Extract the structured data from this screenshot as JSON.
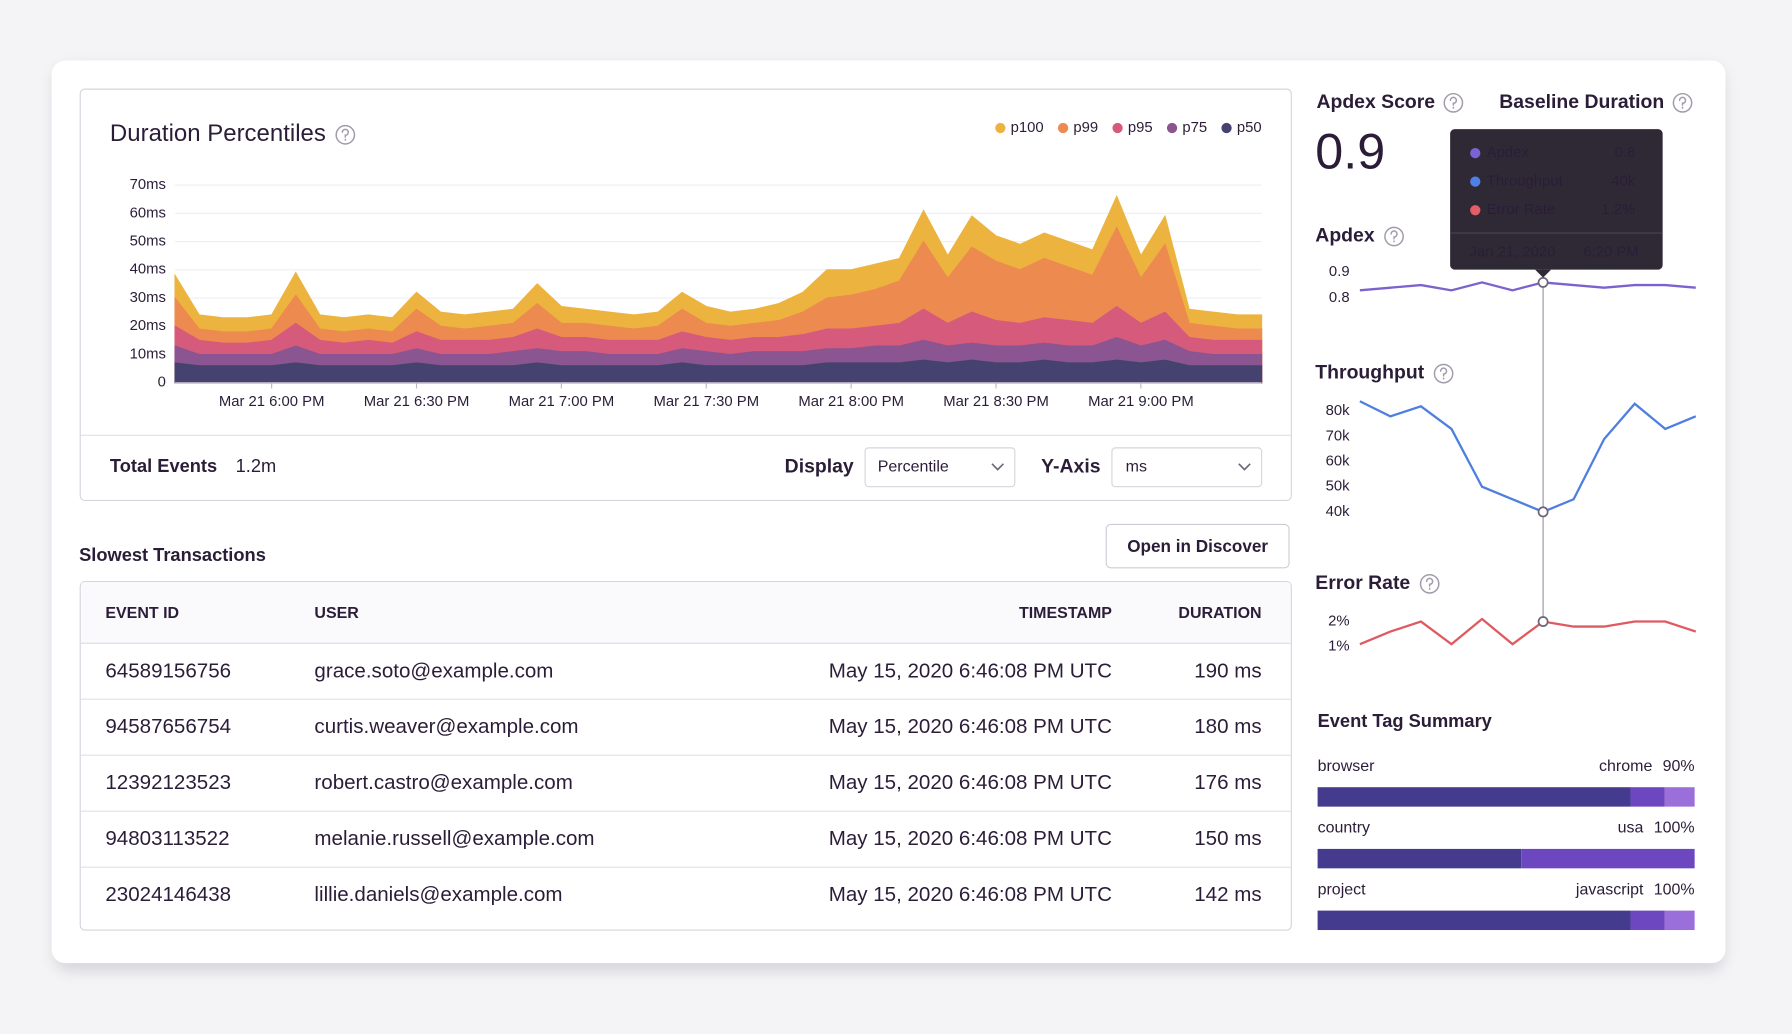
{
  "duration_chart": {
    "type": "area",
    "title": "Duration Percentiles",
    "legend": "top-right",
    "grid": true,
    "categories": [
      null,
      null,
      null,
      null,
      "Mar 21 6:00 PM",
      null,
      null,
      null,
      null,
      null,
      "Mar 21 6:30 PM",
      null,
      null,
      null,
      null,
      null,
      "Mar 21 7:00 PM",
      null,
      null,
      null,
      null,
      null,
      "Mar 21 7:30 PM",
      null,
      null,
      null,
      null,
      null,
      "Mar 21 8:00 PM",
      null,
      null,
      null,
      null,
      null,
      "Mar 21 8:30 PM",
      null,
      null,
      null,
      null,
      null,
      "Mar 21 9:00 PM",
      null,
      null,
      null,
      null,
      null
    ],
    "ylim": [
      0,
      70
    ],
    "yticks": [
      0,
      {
        "value": 10,
        "label": "10ms"
      },
      {
        "value": 20,
        "label": "20ms"
      },
      {
        "value": 30,
        "label": "30ms"
      },
      {
        "value": 40,
        "label": "40ms"
      },
      {
        "value": 50,
        "label": "50ms"
      },
      {
        "value": 60,
        "label": "60ms"
      },
      {
        "value": 70,
        "label": "70ms"
      }
    ],
    "series": [
      {
        "name": "p100",
        "color": "#ecb43f",
        "values": [
          38,
          24,
          23,
          23,
          24,
          39,
          24,
          23,
          24,
          23,
          32,
          25,
          24,
          25,
          26,
          35,
          27,
          26,
          25,
          24,
          25,
          32,
          27,
          25,
          26,
          28,
          32,
          40,
          40,
          42,
          44,
          61,
          45,
          59,
          52,
          49,
          53,
          50,
          47,
          66,
          45,
          59,
          26,
          25,
          24,
          24
        ]
      },
      {
        "name": "p99",
        "color": "#ed8a4f",
        "values": [
          30,
          19,
          18,
          18,
          19,
          31,
          19,
          18,
          19,
          18,
          26,
          20,
          19,
          20,
          21,
          28,
          21,
          21,
          20,
          19,
          20,
          26,
          21,
          20,
          21,
          22,
          25,
          30,
          31,
          33,
          36,
          50,
          37,
          48,
          43,
          40,
          44,
          41,
          38,
          55,
          37,
          49,
          21,
          20,
          19,
          19
        ]
      },
      {
        "name": "p95",
        "color": "#d65a7c",
        "values": [
          20,
          15,
          14,
          14,
          15,
          21,
          15,
          14,
          15,
          14,
          18,
          15,
          15,
          15,
          16,
          19,
          16,
          16,
          15,
          15,
          15,
          18,
          16,
          15,
          16,
          16,
          17,
          19,
          19,
          20,
          21,
          26,
          21,
          25,
          22,
          21,
          23,
          22,
          21,
          27,
          21,
          25,
          16,
          15,
          15,
          15
        ]
      },
      {
        "name": "p75",
        "color": "#8a5590",
        "values": [
          13,
          10,
          10,
          10,
          10,
          13,
          10,
          10,
          10,
          10,
          12,
          10,
          10,
          10,
          11,
          12,
          11,
          11,
          10,
          10,
          10,
          12,
          11,
          10,
          11,
          11,
          11,
          12,
          12,
          13,
          13,
          15,
          13,
          14,
          13,
          13,
          14,
          13,
          13,
          16,
          13,
          15,
          11,
          10,
          10,
          10
        ]
      },
      {
        "name": "p50",
        "color": "#45426f",
        "values": [
          7,
          6,
          6,
          6,
          6,
          7,
          6,
          6,
          6,
          6,
          7,
          6,
          6,
          6,
          6,
          7,
          6,
          6,
          6,
          6,
          6,
          7,
          6,
          6,
          6,
          6,
          6,
          7,
          7,
          7,
          7,
          8,
          7,
          8,
          7,
          7,
          8,
          7,
          7,
          8,
          7,
          8,
          6,
          6,
          6,
          6
        ]
      }
    ]
  },
  "summary": {
    "total_events_label": "Total Events",
    "total_events": "1.2m",
    "display_label": "Display",
    "display_value": "Percentile",
    "y_axis_label": "Y-Axis",
    "y_axis_value": "ms"
  },
  "transactions": {
    "title": "Slowest Transactions",
    "button": "Open in Discover",
    "columns": [
      "EVENT ID",
      "USER",
      "TIMESTAMP",
      "DURATION"
    ],
    "rows": [
      [
        "64589156756",
        "grace.soto@example.com",
        "May 15, 2020 6:46:08 PM UTC",
        "190 ms"
      ],
      [
        "94587656754",
        "curtis.weaver@example.com",
        "May 15, 2020 6:46:08 PM UTC",
        "180 ms"
      ],
      [
        "12392123523",
        "robert.castro@example.com",
        "May 15, 2020 6:46:08 PM UTC",
        "176 ms"
      ],
      [
        "94803113522",
        "melanie.russell@example.com",
        "May 15, 2020 6:46:08 PM UTC",
        "150 ms"
      ],
      [
        "23024146438",
        "lillie.daniels@example.com",
        "May 15, 2020 6:46:08 PM UTC",
        "142 ms"
      ]
    ]
  },
  "sidebar": {
    "apdex_score_label": "Apdex Score",
    "apdex_score": 0.9,
    "baseline_duration_label": "Baseline Duration",
    "charts": [
      {
        "type": "line",
        "title": "Apdex",
        "color": "#7b62cc",
        "values": [
          0.83,
          0.84,
          0.85,
          0.83,
          0.86,
          0.83,
          0.86,
          0.85,
          0.84,
          0.85,
          0.85,
          0.84
        ],
        "ylim": [
          0.75,
          0.95
        ],
        "yticks": [
          0.9,
          0.8
        ]
      },
      {
        "type": "line",
        "title": "Throughput",
        "color": "#4f7fde",
        "values": [
          84,
          78,
          82,
          73,
          50,
          45,
          40,
          45,
          69,
          83,
          73,
          78
        ],
        "ylim": [
          35,
          85
        ],
        "yticks": [
          {
            "value": 80,
            "label": "80k"
          },
          {
            "value": 70,
            "label": "70k"
          },
          {
            "value": 60,
            "label": "60k"
          },
          {
            "value": 50,
            "label": "50k"
          },
          {
            "value": 40,
            "label": "40k"
          }
        ]
      },
      {
        "type": "line",
        "title": "Error Rate",
        "color": "#df5a60",
        "values": [
          1.1,
          1.6,
          2.0,
          1.1,
          2.1,
          1.1,
          2.0,
          1.8,
          1.8,
          2.0,
          2.0,
          1.6
        ],
        "ylim": [
          0.8,
          2.3
        ],
        "yticks": [
          {
            "value": 2,
            "label": "2%"
          },
          {
            "value": 1,
            "label": "1%"
          }
        ]
      }
    ],
    "tooltip": {
      "rows": [
        {
          "name": "Apdex",
          "value": "0.8",
          "color": "#7b62d6"
        },
        {
          "name": "Throughput",
          "value": "40k",
          "color": "#4f80e6"
        },
        {
          "name": "Error Rate",
          "value": "1.2%",
          "color": "#e35e66"
        }
      ],
      "date": "Jan 21, 2020",
      "time": "6:20 PM"
    },
    "tag_summary": {
      "title": "Event Tag Summary",
      "segment_colors": [
        "#443a8e",
        "#6c47c0",
        "#9b6fd9"
      ],
      "tags": [
        {
          "name": "browser",
          "top_value": "chrome",
          "value": 90,
          "value_label": "90%",
          "segments": [
            83,
            9,
            8
          ]
        },
        {
          "name": "country",
          "top_value": "usa",
          "value": 100,
          "value_label": "100%",
          "segments": [
            54,
            46
          ]
        },
        {
          "name": "project",
          "top_value": "javascript",
          "value": 100,
          "value_label": "100%",
          "segments": [
            83,
            9,
            8
          ]
        }
      ]
    }
  }
}
